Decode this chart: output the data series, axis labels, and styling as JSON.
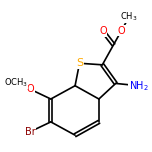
{
  "bg_color": "#ffffff",
  "bond_color": "#000000",
  "atom_colors": {
    "S": "#ffaa00",
    "O": "#ff0000",
    "N": "#0000ff",
    "Br": "#8B0000",
    "C": "#000000"
  },
  "font_size": 7,
  "line_width": 1.2,
  "figsize": [
    1.52,
    1.52
  ],
  "dpi": 100
}
